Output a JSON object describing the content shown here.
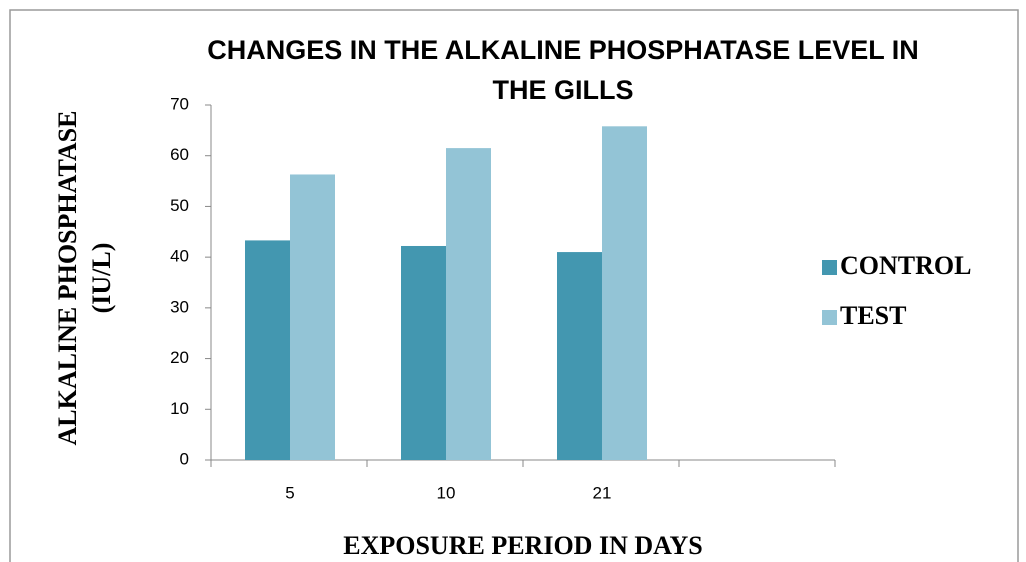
{
  "chart_data": {
    "type": "bar",
    "title": [
      "CHANGES IN THE ALKALINE PHOSPHATASE LEVEL IN",
      "THE  GILLS"
    ],
    "x_label": "EXPOSURE PERIOD IN DAYS",
    "y_label": [
      "ALKALINE PHOSPHATASE",
      "(IU/L)"
    ],
    "categories": [
      "5",
      "10",
      "21",
      null
    ],
    "series": [
      {
        "name": "CONTROL",
        "color": "#4397b0",
        "values": [
          43.3,
          42.2,
          41,
          null
        ]
      },
      {
        "name": "TEST",
        "color": "#93c4d6",
        "values": [
          56.3,
          61.5,
          65.8,
          null
        ]
      }
    ],
    "ylim": [
      0,
      70
    ],
    "yticks": [
      0,
      10,
      20,
      30,
      40,
      50,
      60,
      70
    ],
    "legend": "right"
  }
}
